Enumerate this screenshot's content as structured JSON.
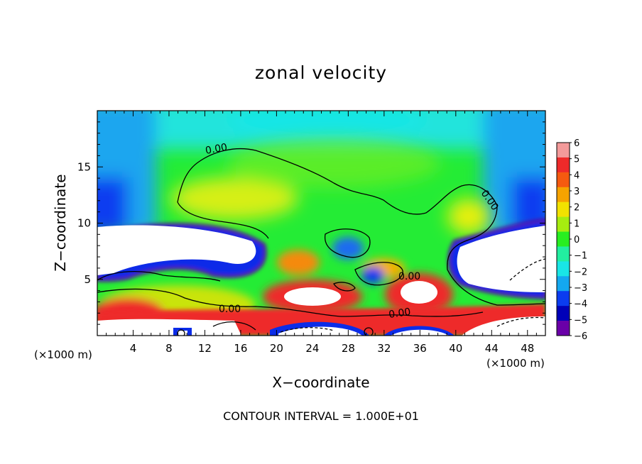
{
  "chart_data": {
    "type": "heatmap",
    "title": "zonal velocity",
    "xlabel": "X−coordinate",
    "ylabel": "Z−coordinate",
    "x_unit": "(×1000 m)",
    "y_unit": "(×1000 m)",
    "footer": "CONTOUR INTERVAL = 1.000E+01",
    "xlim": [
      0,
      50
    ],
    "ylim": [
      0,
      20
    ],
    "x_ticks": [
      "4",
      "8",
      "12",
      "16",
      "20",
      "24",
      "28",
      "32",
      "36",
      "40",
      "44",
      "48"
    ],
    "y_ticks": [
      "5",
      "10",
      "15"
    ],
    "colorbar": {
      "ticks": [
        "6",
        "5",
        "4",
        "3",
        "2",
        "1",
        "0",
        "−1",
        "−2",
        "−3",
        "−4",
        "−5",
        "−6"
      ],
      "colors": [
        "#f39a9a",
        "#ee2a2a",
        "#f55a10",
        "#f6a300",
        "#f2e200",
        "#a6ec10",
        "#28ee20",
        "#22eea0",
        "#19e6e6",
        "#14a8f0",
        "#0b3cf0",
        "#0000b8",
        "#6a00a8"
      ]
    },
    "contour_labels": [
      "0.00",
      "0.00",
      "0.00",
      "0.00",
      "0.00"
    ]
  }
}
